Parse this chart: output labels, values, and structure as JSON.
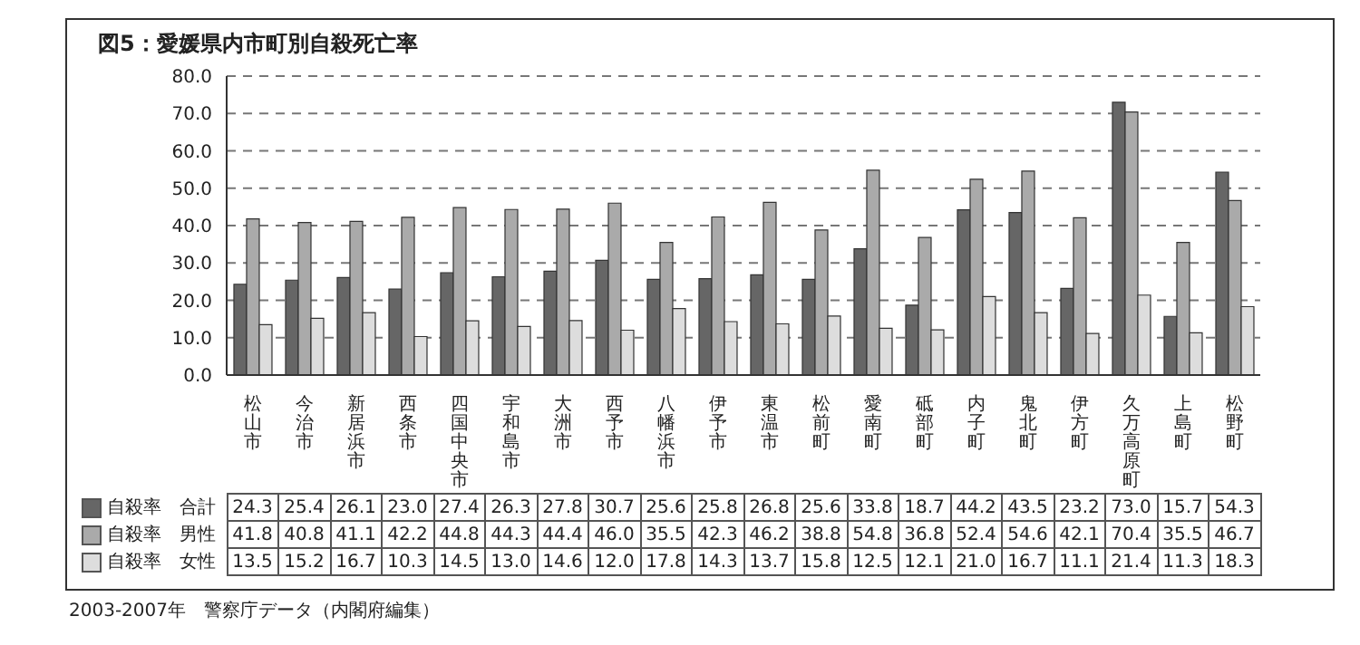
{
  "chart_data": {
    "type": "bar",
    "title": "図5：愛媛県内市町別自殺死亡率",
    "categories": [
      "松山市",
      "今治市",
      "新居浜市",
      "西条市",
      "四国中央市",
      "宇和島市",
      "大洲市",
      "西予市",
      "八幡浜市",
      "伊予市",
      "東温市",
      "松前町",
      "愛南町",
      "砥部町",
      "内子町",
      "鬼北町",
      "伊方町",
      "久万高原町",
      "上島町",
      "松野町"
    ],
    "series": [
      {
        "name": "自殺率　合計",
        "color": "#666666",
        "values": [
          24.3,
          25.4,
          26.1,
          23.0,
          27.4,
          26.3,
          27.8,
          30.7,
          25.6,
          25.8,
          26.8,
          25.6,
          33.8,
          18.7,
          44.2,
          43.5,
          23.2,
          73.0,
          15.7,
          54.3
        ],
        "value_labels": [
          "24.3",
          "25.4",
          "26.1",
          "23.0",
          "27.4",
          "26.3",
          "27.8",
          "30.7",
          "25.6",
          "25.8",
          "26.8",
          "25.6",
          "33.8",
          "18.7",
          "44.2",
          "43.5",
          "23.2",
          "73.0",
          "15.7",
          "54.3"
        ]
      },
      {
        "name": "自殺率　男性",
        "color": "#aaaaaa",
        "values": [
          41.8,
          40.8,
          41.1,
          42.2,
          44.8,
          44.3,
          44.4,
          46.0,
          35.5,
          42.3,
          46.2,
          38.8,
          54.8,
          36.8,
          52.4,
          54.6,
          42.1,
          70.4,
          35.5,
          46.7
        ],
        "value_labels": [
          "41.8",
          "40.8",
          "41.1",
          "42.2",
          "44.8",
          "44.3",
          "44.4",
          "46.0",
          "35.5",
          "42.3",
          "46.2",
          "38.8",
          "54.8",
          "36.8",
          "52.4",
          "54.6",
          "42.1",
          "70.4",
          "35.5",
          "46.7"
        ]
      },
      {
        "name": "自殺率　女性",
        "color": "#dddddd",
        "values": [
          13.5,
          15.2,
          16.7,
          10.3,
          14.5,
          13.0,
          14.6,
          12.0,
          17.8,
          14.3,
          13.7,
          15.8,
          12.5,
          12.1,
          21.0,
          16.7,
          11.1,
          21.4,
          11.3,
          18.3
        ],
        "value_labels": [
          "13.5",
          "15.2",
          "16.7",
          "10.3",
          "14.5",
          "13.0",
          "14.6",
          "12.0",
          "17.8",
          "14.3",
          "13.7",
          "15.8",
          "12.5",
          "12.1",
          "21.0",
          "16.7",
          "11.1",
          "21.4",
          "11.3",
          "18.3"
        ]
      }
    ],
    "ylim": [
      0,
      80
    ],
    "yticks": [
      {
        "value": 0,
        "label": "0.0"
      },
      {
        "value": 10,
        "label": "10.0"
      },
      {
        "value": 20,
        "label": "20.0"
      },
      {
        "value": 30,
        "label": "30.0"
      },
      {
        "value": 40,
        "label": "40.0"
      },
      {
        "value": 50,
        "label": "50.0"
      },
      {
        "value": 60,
        "label": "60.0"
      },
      {
        "value": 70,
        "label": "70.0"
      },
      {
        "value": 80,
        "label": "80.0"
      }
    ],
    "grid": "y",
    "legend": "bottom left",
    "annotations": [
      "2003-2007年　警察庁データ（内閣府編集）"
    ]
  }
}
